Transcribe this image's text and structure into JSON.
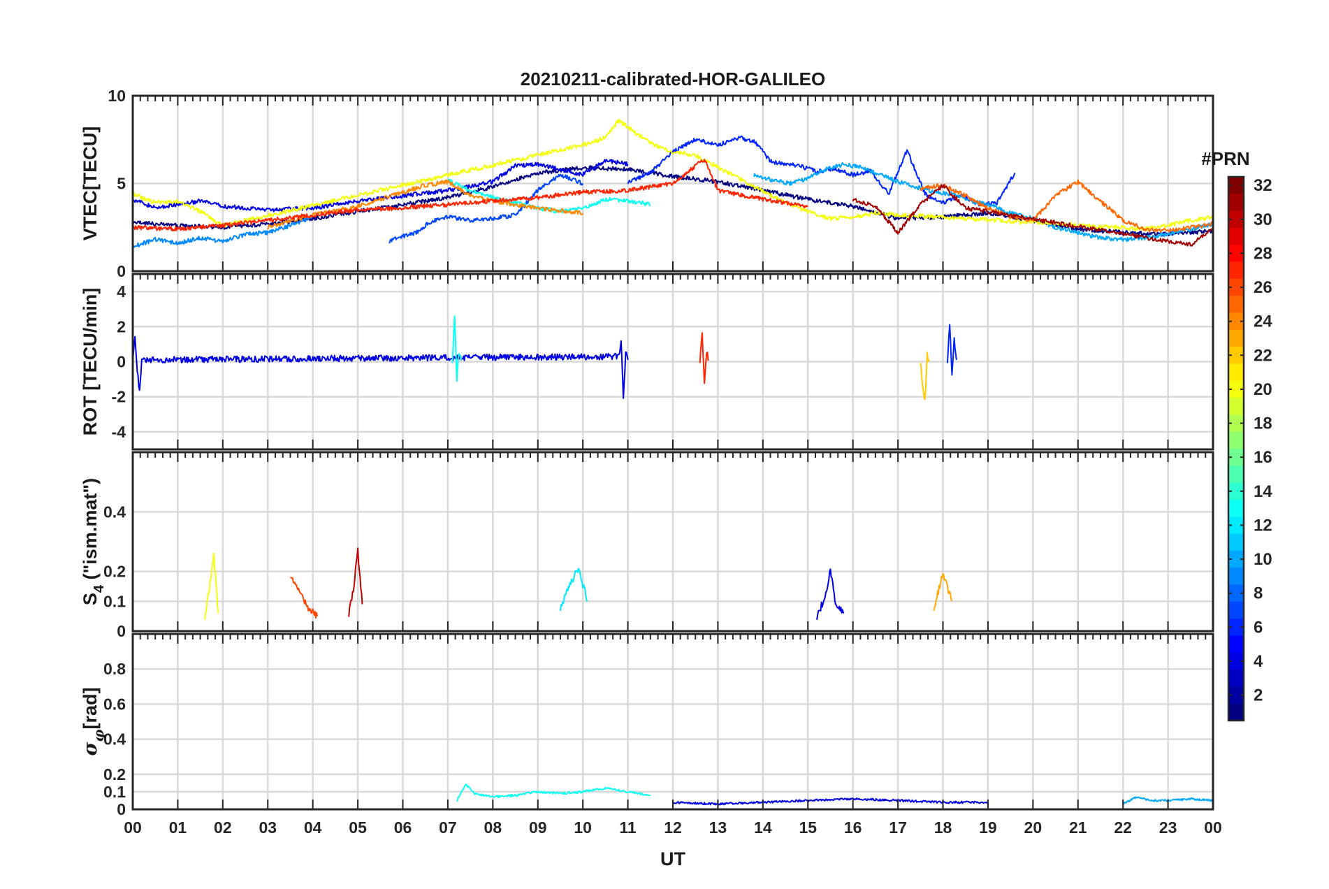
{
  "chart_data": {
    "type": "line",
    "title": "20210211-calibrated-HOR-GALILEO",
    "xlabel": "UT",
    "xlim": [
      0,
      24
    ],
    "x_ticks": [
      "00",
      "01",
      "02",
      "03",
      "04",
      "05",
      "06",
      "07",
      "08",
      "09",
      "10",
      "11",
      "12",
      "13",
      "14",
      "15",
      "16",
      "17",
      "18",
      "19",
      "20",
      "21",
      "22",
      "23",
      "00"
    ],
    "colorbar": {
      "label": "#PRN",
      "range": [
        1,
        32
      ],
      "ticks": [
        "2",
        "4",
        "6",
        "8",
        "10",
        "12",
        "14",
        "16",
        "18",
        "20",
        "22",
        "24",
        "26",
        "28",
        "30",
        "32"
      ]
    },
    "panels": [
      {
        "ylabel": "VTEC[TECU]",
        "ylim": [
          0,
          10
        ],
        "y_ticks": [
          "0",
          "5",
          "10"
        ],
        "y_tick_values": [
          0,
          5,
          10
        ],
        "series": [
          {
            "prn": 1,
            "x": [
              0,
              1,
              2,
              3,
              4,
              5,
              6,
              7,
              8,
              9,
              10,
              11,
              12,
              13,
              14,
              15,
              16,
              17,
              18,
              19,
              20,
              21,
              22,
              23,
              24
            ],
            "y": [
              2.8,
              2.6,
              2.5,
              2.7,
              3.0,
              3.4,
              3.8,
              4.2,
              4.8,
              5.6,
              5.9,
              5.8,
              5.4,
              5.1,
              4.6,
              4.1,
              3.7,
              3.0,
              3.1,
              3.3,
              2.9,
              2.4,
              2.2,
              2.1,
              2.3
            ]
          },
          {
            "prn": 4,
            "x": [
              0,
              0.5,
              1,
              1.5,
              2,
              2.5,
              3,
              4,
              5,
              6,
              7,
              8,
              8.5,
              9,
              10,
              10.5,
              11
            ],
            "y": [
              4.1,
              3.6,
              3.8,
              4.0,
              3.7,
              3.6,
              3.5,
              3.6,
              4.0,
              4.3,
              4.6,
              5.1,
              6.0,
              6.1,
              5.5,
              6.3,
              6.1
            ]
          },
          {
            "prn": 6,
            "x": [
              11,
              11.5,
              12,
              12.5,
              13,
              13.5,
              13.8,
              14.2,
              14.8,
              15.2,
              15.6,
              16,
              16.4,
              16.8,
              17.2,
              17.6,
              18,
              18.4,
              18.8,
              19.2,
              19.6
            ],
            "y": [
              5.1,
              5.6,
              6.8,
              7.5,
              7.2,
              7.6,
              7.4,
              6.2,
              6.0,
              5.7,
              5.8,
              5.5,
              5.7,
              4.4,
              6.9,
              4.4,
              3.9,
              4.3,
              3.8,
              3.9,
              5.6
            ]
          },
          {
            "prn": 7,
            "x": [
              5.7,
              6,
              6.3,
              6.6,
              7,
              7.5,
              8,
              8.5,
              9,
              9.5,
              10
            ],
            "y": [
              1.7,
              2.0,
              2.2,
              2.8,
              3.1,
              2.9,
              3.0,
              3.2,
              4.6,
              5.5,
              5.0
            ]
          },
          {
            "prn": 9,
            "x": [
              0,
              0.5,
              1,
              1.5,
              2,
              2.5,
              3,
              3.5,
              4
            ],
            "y": [
              1.4,
              1.8,
              1.6,
              1.9,
              1.7,
              2.1,
              2.2,
              2.6,
              3.1
            ]
          },
          {
            "prn": 10,
            "x": [
              13.8,
              14.2,
              14.6,
              15,
              15.4,
              15.8,
              16.2,
              16.6,
              17,
              17.4,
              17.8,
              18.2,
              18.6,
              19,
              19.4,
              20,
              20.5,
              21,
              21.5,
              22,
              22.5,
              23,
              23.5,
              24
            ],
            "y": [
              5.5,
              5.2,
              5.0,
              5.3,
              5.8,
              6.1,
              5.9,
              5.5,
              5.1,
              4.8,
              4.5,
              4.4,
              4.0,
              3.8,
              3.4,
              3.0,
              2.5,
              2.2,
              1.9,
              1.8,
              1.9,
              2.1,
              2.4,
              2.7
            ]
          },
          {
            "prn": 13,
            "x": [
              7,
              7.5,
              8,
              8.5,
              9,
              9.5,
              10,
              10.5,
              11,
              11.5
            ],
            "y": [
              5.2,
              4.6,
              4.2,
              3.9,
              3.6,
              3.4,
              3.6,
              4.1,
              4.0,
              3.8
            ]
          },
          {
            "prn": 20,
            "x": [
              0,
              0.5,
              1,
              1.5,
              2,
              10,
              10.5,
              10.8,
              11.2,
              11.6,
              12,
              12.5,
              14.5,
              15,
              15.5,
              16,
              16.5,
              22.5,
              23,
              23.5,
              24
            ],
            "y": [
              4.4,
              3.9,
              4.0,
              3.4,
              2.6,
              7.2,
              7.6,
              8.6,
              7.8,
              7.2,
              6.8,
              6.6,
              3.9,
              3.4,
              3.0,
              3.1,
              3.3,
              2.4,
              2.6,
              2.9,
              3.1
            ]
          },
          {
            "prn": 24,
            "x": [
              3,
              4,
              5,
              6,
              6.5,
              7,
              7.5,
              8,
              9,
              10
            ],
            "y": [
              2.5,
              3.2,
              3.7,
              4.5,
              4.9,
              5.1,
              4.3,
              4.0,
              3.6,
              3.3
            ]
          },
          {
            "prn": 25,
            "x": [
              17.5,
              18,
              18.5,
              19,
              19.5,
              20,
              20.5,
              21,
              21.5,
              22,
              22.5,
              23,
              23.5,
              24
            ],
            "y": [
              4.7,
              4.9,
              4.3,
              3.6,
              3.1,
              2.9,
              4.3,
              5.1,
              4.0,
              2.9,
              2.4,
              2.3,
              2.5,
              2.7
            ]
          },
          {
            "prn": 27,
            "x": [
              0,
              1,
              2,
              3,
              4,
              5,
              6,
              7,
              8,
              9,
              10,
              11,
              12,
              12.7,
              13,
              14,
              15
            ],
            "y": [
              2.5,
              2.4,
              2.6,
              2.9,
              3.2,
              3.5,
              3.6,
              3.8,
              4.0,
              4.2,
              4.5,
              4.6,
              5.0,
              6.4,
              4.6,
              4.1,
              3.7
            ]
          },
          {
            "prn": 31,
            "x": [
              16,
              16.5,
              17,
              17.5,
              18,
              18.5,
              23.5,
              24
            ],
            "y": [
              4.1,
              3.7,
              2.2,
              3.8,
              4.9,
              3.6,
              1.5,
              2.4
            ]
          }
        ]
      },
      {
        "ylabel": "ROT [TECU/min]",
        "ylim": [
          -5,
          5
        ],
        "y_ticks": [
          "-4",
          "-2",
          "0",
          "2",
          "4"
        ],
        "y_tick_values": [
          -4,
          -2,
          0,
          2,
          4
        ],
        "series": [
          {
            "prn": 4,
            "x": [
              0,
              0.05,
              0.1,
              0.15,
              0.2,
              10.8,
              10.85,
              10.9,
              10.95,
              11
            ],
            "y": [
              0.2,
              1.5,
              -0.6,
              -1.6,
              0.1,
              0.3,
              1.3,
              -2.2,
              0.5,
              0.1
            ]
          },
          {
            "prn": 6,
            "x": [
              18.1,
              18.15,
              18.2,
              18.25,
              18.3
            ],
            "y": [
              0.1,
              2.1,
              -0.6,
              1.4,
              0.1
            ]
          },
          {
            "prn": 13,
            "x": [
              7.1,
              7.15,
              7.2,
              7.25,
              7.3
            ],
            "y": [
              0.1,
              2.5,
              -1.0,
              0.6,
              0.1
            ]
          },
          {
            "prn": 22,
            "x": [
              17.5,
              17.55,
              17.6,
              17.65,
              17.7
            ],
            "y": [
              0.1,
              -1.4,
              -2.3,
              0.4,
              0.1
            ]
          },
          {
            "prn": 27,
            "x": [
              12.6,
              12.65,
              12.7,
              12.75,
              12.8
            ],
            "y": [
              0.1,
              1.7,
              -1.2,
              0.5,
              0.1
            ]
          }
        ]
      },
      {
        "ylabel": "S4 (\"ism.mat\")",
        "ylim": [
          0,
          0.6
        ],
        "y_ticks": [
          "0",
          "0.1",
          "0.2",
          "0.4"
        ],
        "y_tick_values": [
          0,
          0.1,
          0.2,
          0.4
        ],
        "series": [
          {
            "prn": 20,
            "x": [
              1.6,
              1.7,
              1.8,
              1.9
            ],
            "y": [
              0.05,
              0.14,
              0.26,
              0.06
            ]
          },
          {
            "prn": 30,
            "x": [
              4.8,
              4.9,
              5.0,
              5.1
            ],
            "y": [
              0.06,
              0.14,
              0.27,
              0.09
            ]
          },
          {
            "prn": 26,
            "x": [
              3.5,
              3.7,
              3.9,
              4.1
            ],
            "y": [
              0.19,
              0.13,
              0.08,
              0.05
            ]
          },
          {
            "prn": 12,
            "x": [
              9.5,
              9.7,
              9.9,
              10.1
            ],
            "y": [
              0.08,
              0.15,
              0.21,
              0.1
            ]
          },
          {
            "prn": 4,
            "x": [
              15.2,
              15.4,
              15.5,
              15.6,
              15.8
            ],
            "y": [
              0.05,
              0.12,
              0.21,
              0.1,
              0.06
            ]
          },
          {
            "prn": 23,
            "x": [
              17.8,
              18.0,
              18.2
            ],
            "y": [
              0.08,
              0.19,
              0.1
            ]
          }
        ]
      },
      {
        "ylabel": "σφ[rad]",
        "ylim": [
          0,
          1
        ],
        "y_ticks": [
          "0",
          "0.1",
          "0.2",
          "0.4",
          "0.6",
          "0.8"
        ],
        "y_tick_values": [
          0,
          0.1,
          0.2,
          0.4,
          0.6,
          0.8
        ],
        "series": [
          {
            "prn": 13,
            "x": [
              7.2,
              7.4,
              7.6,
              8.0,
              8.5,
              9.0,
              9.5,
              10.0,
              10.5,
              11.0,
              11.5
            ],
            "y": [
              0.05,
              0.14,
              0.09,
              0.07,
              0.08,
              0.1,
              0.09,
              0.1,
              0.12,
              0.1,
              0.08
            ]
          },
          {
            "prn": 10,
            "x": [
              22,
              22.3,
              22.6,
              23,
              23.5,
              24
            ],
            "y": [
              0.03,
              0.07,
              0.05,
              0.05,
              0.06,
              0.05
            ]
          },
          {
            "prn": 4,
            "x": [
              12,
              13,
              14,
              15,
              16,
              17,
              18,
              19
            ],
            "y": [
              0.04,
              0.03,
              0.04,
              0.05,
              0.06,
              0.05,
              0.04,
              0.04
            ]
          }
        ]
      }
    ]
  }
}
